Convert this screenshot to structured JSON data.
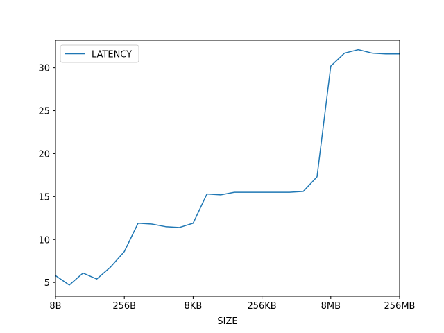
{
  "chart_data": {
    "type": "line",
    "title": "",
    "xlabel": "SIZE",
    "ylabel": "",
    "x_scale": "log2",
    "x_tick_values": [
      8,
      256,
      8192,
      262144,
      8388608,
      268435456
    ],
    "x_tick_labels": [
      "8B",
      "256B",
      "8KB",
      "256KB",
      "8MB",
      "256MB"
    ],
    "xlim": [
      8,
      268435456
    ],
    "ylim": [
      3.4,
      33.2
    ],
    "y_ticks": [
      5,
      10,
      15,
      20,
      25,
      30
    ],
    "grid": false,
    "legend": {
      "position": "upper-left",
      "show": true
    },
    "series": [
      {
        "name": "LATENCY",
        "color": "#1f77b4",
        "x": [
          8,
          16,
          32,
          64,
          128,
          256,
          512,
          1024,
          2048,
          4096,
          8192,
          16384,
          32768,
          65536,
          131072,
          262144,
          524288,
          1048576,
          2097152,
          4194304,
          8388608,
          16777216,
          33554432,
          67108864,
          134217728,
          268435456
        ],
        "y": [
          5.8,
          4.7,
          6.1,
          5.4,
          6.8,
          8.6,
          11.9,
          11.8,
          11.5,
          11.4,
          11.9,
          15.3,
          15.2,
          15.5,
          15.5,
          15.5,
          15.5,
          15.5,
          15.6,
          17.3,
          30.2,
          31.7,
          32.1,
          31.7,
          31.6,
          31.6
        ]
      }
    ]
  }
}
